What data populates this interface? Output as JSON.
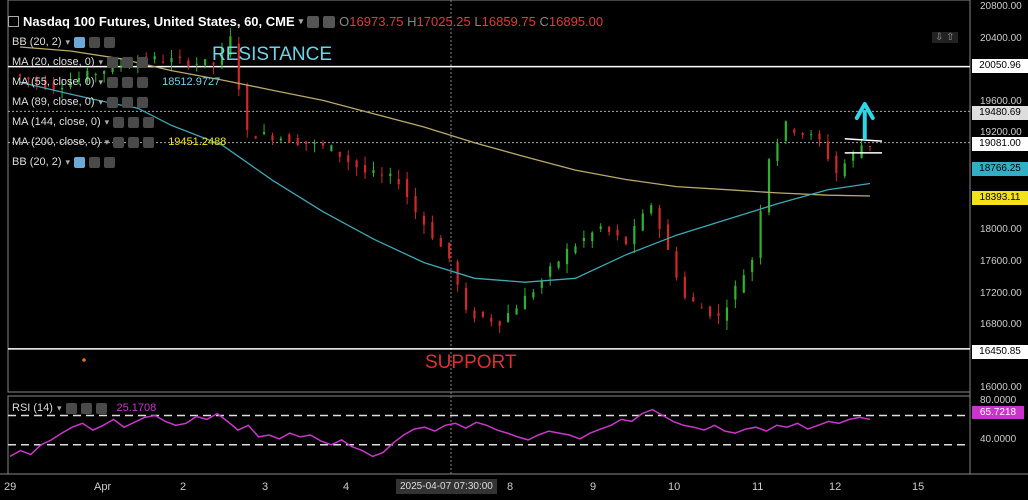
{
  "header": {
    "title": "Nasdaq 100 Futures, United States, 60, CME",
    "o_key": "O",
    "o_val": "16973.75",
    "h_key": "H",
    "h_val": "17025.25",
    "l_key": "L",
    "l_val": "16859.75",
    "c_key": "C",
    "c_val": "16895.00"
  },
  "indicators": [
    {
      "label": "BB (20, 2)",
      "value": ""
    },
    {
      "label": "MA (20, close, 0)",
      "value": ""
    },
    {
      "label": "MA (55, close, 0)",
      "value": "18512.9727"
    },
    {
      "label": "MA (89, close, 0)",
      "value": ""
    },
    {
      "label": "MA (144, close, 0)",
      "value": ""
    },
    {
      "label": "MA (200, close, 0)",
      "value": "19451.2488"
    },
    {
      "label": "BB (20, 2)",
      "value": ""
    }
  ],
  "annotations": {
    "resistance": "RESISTANCE",
    "support": "SUPPORT"
  },
  "price_axis": [
    "20800.00",
    "20400.00",
    "19600.00",
    "19200.00",
    "18000.00",
    "17600.00",
    "17200.00",
    "16800.00",
    "16000.00"
  ],
  "price_tags": {
    "t20050": "20050.96",
    "t19480": "19480.69",
    "t19081": "19081.00",
    "t18766": "18766.25",
    "t18393": "18393.11",
    "t16450": "16450.85"
  },
  "rsi": {
    "label": "RSI (14)",
    "value": "25.1708",
    "tag": "65.7218",
    "axis_80": "80.0000",
    "axis_40": "40.0000"
  },
  "x_axis": [
    "29",
    "Apr",
    "2",
    "3",
    "4",
    "8",
    "9",
    "10",
    "11",
    "12",
    "15"
  ],
  "crosshair_time": "2025-04-07 07:30:00",
  "colors": {
    "up": "#2fb32f",
    "down": "#d02828",
    "ma_cyan": "#3fa7b5",
    "ma_khaki": "#b9a96a",
    "rsi": "#c838c8"
  },
  "chart_data": {
    "type": "candlestick",
    "title": "Nasdaq 100 Futures, United States, 60, CME",
    "ylim": [
      15900,
      20900
    ],
    "levels": {
      "resistance": 20050.96,
      "support": 16450.85,
      "breakout_zone": [
        19000,
        19100
      ]
    },
    "ma_a": {
      "name": "MA (55, close, 0)",
      "points": [
        [
          0,
          19850
        ],
        [
          6,
          19700
        ],
        [
          11,
          19580
        ],
        [
          14,
          19520
        ],
        [
          18,
          19300
        ],
        [
          24,
          19050
        ],
        [
          30,
          18600
        ],
        [
          36,
          18200
        ],
        [
          42,
          17850
        ],
        [
          48,
          17550
        ],
        [
          54,
          17350
        ],
        [
          60,
          17300
        ],
        [
          66,
          17350
        ],
        [
          72,
          17650
        ],
        [
          78,
          17900
        ],
        [
          84,
          18100
        ],
        [
          90,
          18300
        ],
        [
          96,
          18480
        ],
        [
          101,
          18560
        ]
      ]
    },
    "ma_b": {
      "name": "MA (200, close, 0)",
      "points": [
        [
          0,
          20300
        ],
        [
          6,
          20250
        ],
        [
          12,
          20150
        ],
        [
          18,
          20000
        ],
        [
          24,
          19880
        ],
        [
          30,
          19750
        ],
        [
          36,
          19620
        ],
        [
          42,
          19450
        ],
        [
          48,
          19280
        ],
        [
          54,
          19080
        ],
        [
          60,
          18900
        ],
        [
          66,
          18730
        ],
        [
          72,
          18610
        ],
        [
          78,
          18520
        ],
        [
          84,
          18480
        ],
        [
          90,
          18440
        ],
        [
          96,
          18410
        ],
        [
          101,
          18400
        ]
      ]
    },
    "rsi_values": [
      28,
      34,
      30,
      40,
      45,
      52,
      58,
      62,
      55,
      60,
      66,
      58,
      63,
      68,
      70,
      64,
      60,
      62,
      69,
      66,
      72,
      64,
      55,
      60,
      48,
      50,
      46,
      52,
      48,
      50,
      44,
      40,
      45,
      38,
      34,
      28,
      32,
      42,
      50,
      56,
      58,
      54,
      60,
      62,
      57,
      63,
      60,
      55,
      52,
      48,
      45,
      50,
      54,
      52,
      50,
      46,
      52,
      56,
      60,
      66,
      64,
      72,
      76,
      70,
      64,
      60,
      58,
      55,
      60,
      54,
      52,
      56,
      58,
      54,
      60,
      58,
      62,
      56,
      60,
      64,
      62,
      66,
      68,
      66
    ]
  }
}
